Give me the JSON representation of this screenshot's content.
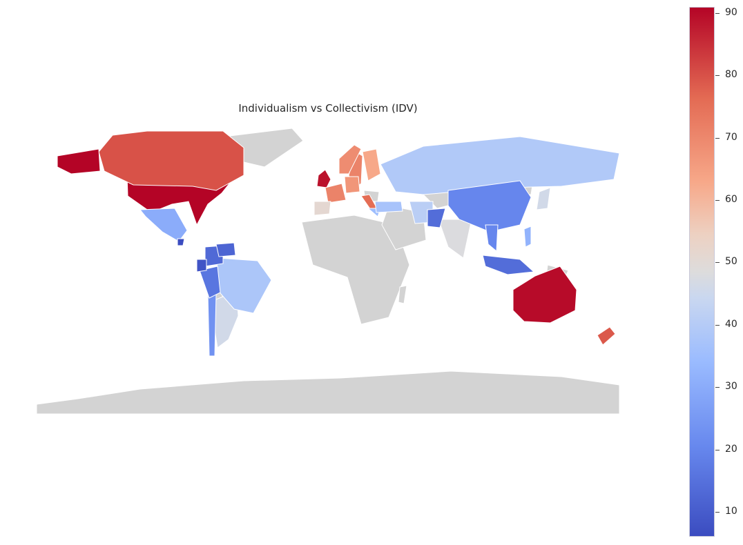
{
  "title": "Individualism vs Collectivism (IDV)",
  "colormap": "coolwarm",
  "colors": {
    "low": "#3b4cc0",
    "mid": "#dddcdc",
    "high": "#b40426",
    "no_data": "#d3d3d3",
    "border": "#ffffff"
  },
  "colorbar": {
    "min": 6,
    "max": 91,
    "ticks": [
      10,
      20,
      30,
      40,
      50,
      60,
      70,
      80,
      90
    ]
  },
  "regions": [
    {
      "name": "United States",
      "value": 91
    },
    {
      "name": "Australia",
      "value": 90
    },
    {
      "name": "United Kingdom",
      "value": 89
    },
    {
      "name": "Canada",
      "value": 80
    },
    {
      "name": "New Zealand",
      "value": 79
    },
    {
      "name": "Italy",
      "value": 76
    },
    {
      "name": "Sweden",
      "value": 71
    },
    {
      "name": "France",
      "value": 71
    },
    {
      "name": "Norway",
      "value": 69
    },
    {
      "name": "Germany",
      "value": 67
    },
    {
      "name": "Finland",
      "value": 63
    },
    {
      "name": "Spain",
      "value": 51
    },
    {
      "name": "Argentina",
      "value": 46
    },
    {
      "name": "India",
      "value": 48
    },
    {
      "name": "Japan",
      "value": 46
    },
    {
      "name": "Iran",
      "value": 41
    },
    {
      "name": "Russia",
      "value": 39
    },
    {
      "name": "Brazil",
      "value": 38
    },
    {
      "name": "Greece",
      "value": 35
    },
    {
      "name": "Turkey",
      "value": 37
    },
    {
      "name": "Mexico",
      "value": 30
    },
    {
      "name": "Philippines",
      "value": 32
    },
    {
      "name": "Chile",
      "value": 23
    },
    {
      "name": "China",
      "value": 20
    },
    {
      "name": "Thailand",
      "value": 20
    },
    {
      "name": "Peru",
      "value": 16
    },
    {
      "name": "Indonesia",
      "value": 14
    },
    {
      "name": "Pakistan",
      "value": 14
    },
    {
      "name": "Colombia",
      "value": 13
    },
    {
      "name": "Venezuela",
      "value": 12
    },
    {
      "name": "Ecuador",
      "value": 8
    },
    {
      "name": "Guatemala",
      "value": 6
    }
  ]
}
